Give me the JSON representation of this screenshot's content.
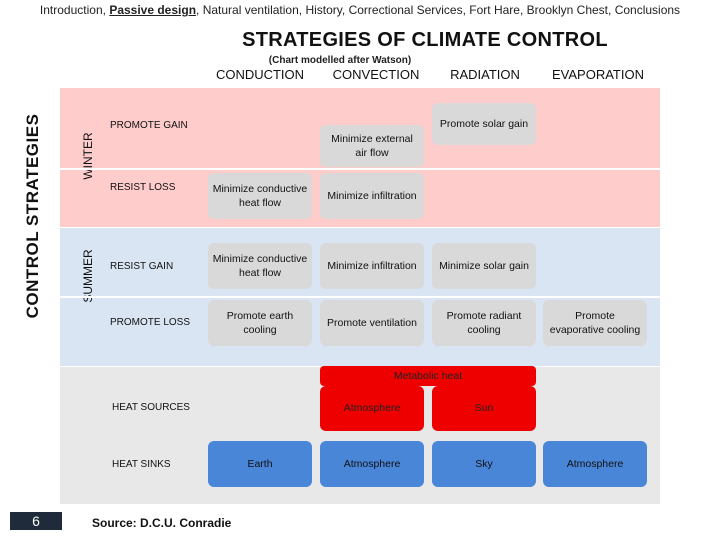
{
  "nav": {
    "items": [
      "Introduction",
      "Passive design",
      "Natural ventilation",
      "History",
      "Correctional Services",
      "Fort Hare",
      "Brooklyn Chest",
      "Conclusions"
    ],
    "active_index": 1,
    "separator": ", "
  },
  "title": "STRATEGIES OF CLIMATE CONTROL",
  "subtitle": "(Chart modelled after Watson)",
  "columns": [
    "CONDUCTION",
    "CONVECTION",
    "RADIATION",
    "EVAPORATION"
  ],
  "side_title": "CONTROL STRATEGIES",
  "season_labels": {
    "winter": "WINTER",
    "summer": "SUMMER"
  },
  "row_labels": {
    "promote_gain": "PROMOTE GAIN",
    "resist_loss": "RESIST LOSS",
    "resist_gain": "RESIST GAIN",
    "promote_loss": "PROMOTE LOSS",
    "heat_sources": "HEAT SOURCES",
    "heat_sinks": "HEAT SINKS"
  },
  "cells": {
    "winter_promote_gain_convection": "Minimize external air flow",
    "winter_promote_gain_radiation": "Promote solar gain",
    "winter_resist_loss_conduction": "Minimize conductive heat flow",
    "winter_resist_loss_convection": "Minimize infiltration",
    "summer_resist_gain_conduction": "Minimize conductive heat flow",
    "summer_resist_gain_convection": "Minimize infiltration",
    "summer_resist_gain_radiation": "Minimize solar gain",
    "summer_promote_loss_conduction": "Promote earth cooling",
    "summer_promote_loss_convection": "Promote ventilation",
    "summer_promote_loss_radiation": "Promote radiant cooling",
    "summer_promote_loss_evaporation": "Promote evaporative cooling",
    "metabolic_heat": "Metabolic heat",
    "source_convection": "Atmosphere",
    "source_radiation": "Sun",
    "sink_conduction": "Earth",
    "sink_convection": "Atmosphere",
    "sink_radiation": "Sky",
    "sink_evaporation": "Atmosphere"
  },
  "page_number": "6",
  "source": "Source: D.C.U. Conradie",
  "colors": {
    "winter": "#ffcccc",
    "summer": "#dae5f3",
    "heat": "#e8e8e8",
    "cell": "#d9d9d9",
    "source": "#ee0000",
    "sink": "#4a86d8"
  }
}
